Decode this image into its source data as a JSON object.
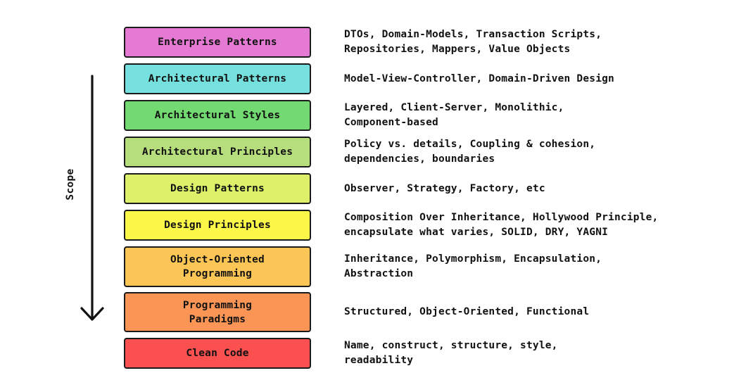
{
  "scope_label": "Scope",
  "layers": [
    {
      "name": "Enterprise Patterns",
      "color": "#e47ad3",
      "description": "DTOs, Domain-Models, Transaction Scripts,\nRepositories, Mappers, Value Objects"
    },
    {
      "name": "Architectural Patterns",
      "color": "#76e0de",
      "description": "Model-View-Controller, Domain-Driven Design"
    },
    {
      "name": "Architectural Styles",
      "color": "#72da70",
      "description": "Layered, Client-Server, Monolithic,\nComponent-based"
    },
    {
      "name": "Architectural Principles",
      "color": "#b6de7c",
      "description": "Policy vs. details, Coupling & cohesion,\ndependencies, boundaries"
    },
    {
      "name": "Design Patterns",
      "color": "#dcf06a",
      "description": "Observer, Strategy, Factory, etc"
    },
    {
      "name": "Design Principles",
      "color": "#fbf84a",
      "description": "Composition Over Inheritance, Hollywood Principle,\nencapsulate what varies, SOLID, DRY, YAGNI"
    },
    {
      "name": "Object-Oriented\nProgramming",
      "color": "#fbc656",
      "description": "Inheritance, Polymorphism, Encapsulation,\nAbstraction"
    },
    {
      "name": "Programming\nParadigms",
      "color": "#fb9556",
      "description": "Structured, Object-Oriented, Functional"
    },
    {
      "name": "Clean Code",
      "color": "#fb5050",
      "description": "Name, construct, structure, style,\nreadability"
    }
  ]
}
